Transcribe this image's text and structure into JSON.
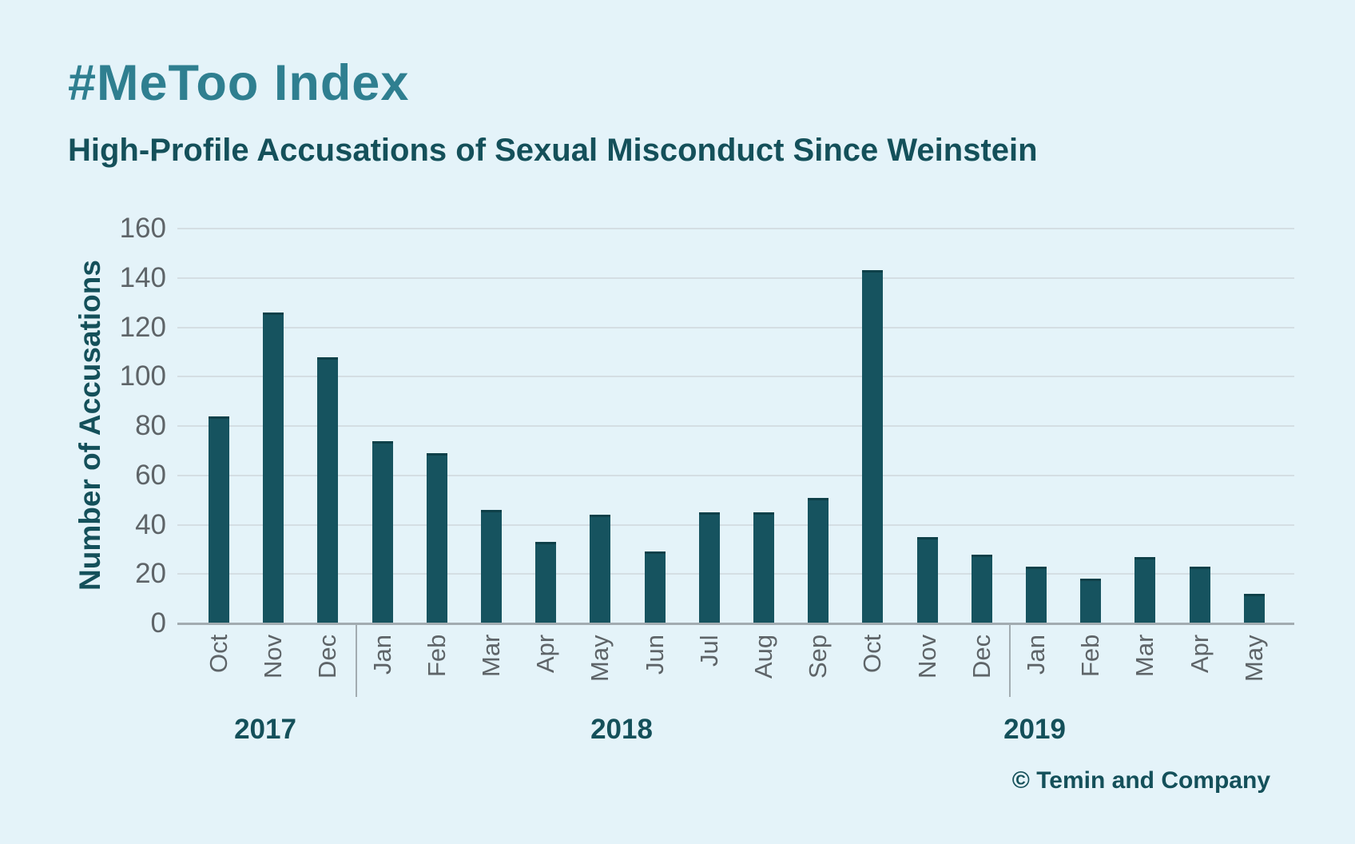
{
  "header": {
    "title": "#MeToo Index",
    "subtitle": "High-Profile Accusations of Sexual Misconduct Since Weinstein"
  },
  "footer": {
    "attribution": "© Temin and Company"
  },
  "chart_data": {
    "type": "bar",
    "title": "#MeToo Index",
    "subtitle": "High-Profile Accusations of Sexual Misconduct Since Weinstein",
    "ylabel": "Number of Accusations",
    "xlabel": "",
    "ylim": [
      0,
      160
    ],
    "yticks": [
      0,
      20,
      40,
      60,
      80,
      100,
      120,
      140,
      160
    ],
    "grid": true,
    "legend": "none",
    "categories": [
      "Oct",
      "Nov",
      "Dec",
      "Jan",
      "Feb",
      "Mar",
      "Apr",
      "May",
      "Jun",
      "Jul",
      "Aug",
      "Sep",
      "Oct",
      "Nov",
      "Dec",
      "Jan",
      "Feb",
      "Mar",
      "Apr",
      "May"
    ],
    "values": [
      84,
      126,
      108,
      74,
      69,
      46,
      33,
      44,
      29,
      45,
      45,
      51,
      143,
      35,
      28,
      23,
      18,
      27,
      23,
      12
    ],
    "year_groups": [
      {
        "label": "2017",
        "months": 3
      },
      {
        "label": "2018",
        "months": 12
      },
      {
        "label": "2019",
        "months": 5
      }
    ],
    "colors": {
      "bar": "#16535f",
      "background": "#e4f3f9",
      "title": "#2f7f90",
      "dark_text": "#14505a",
      "axis_text": "#5e6468",
      "gridline": "#d4dee3",
      "axis_line": "#a2acb1"
    }
  }
}
